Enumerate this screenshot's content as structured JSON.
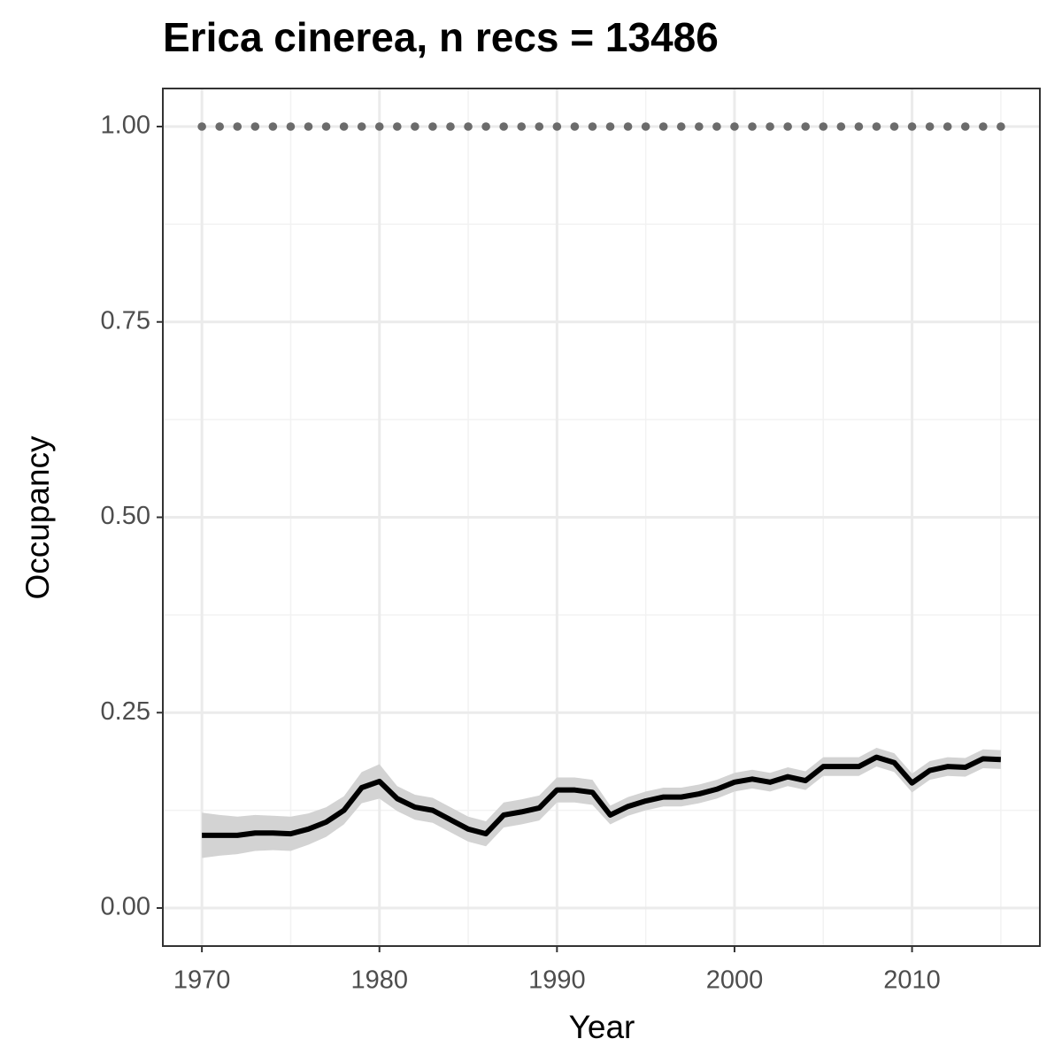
{
  "chart_data": {
    "type": "line",
    "title": "Erica cinerea, n recs = 13486",
    "xlabel": "Year",
    "ylabel": "Occupancy",
    "x": [
      1970,
      1971,
      1972,
      1973,
      1974,
      1975,
      1976,
      1977,
      1978,
      1979,
      1980,
      1981,
      1982,
      1983,
      1984,
      1985,
      1986,
      1987,
      1988,
      1989,
      1990,
      1991,
      1992,
      1993,
      1994,
      1995,
      1996,
      1997,
      1998,
      1999,
      2000,
      2001,
      2002,
      2003,
      2004,
      2005,
      2006,
      2007,
      2008,
      2009,
      2010,
      2011,
      2012,
      2013,
      2014,
      2015
    ],
    "series": [
      {
        "color": "#000000",
        "band_color": "#d3d3d3",
        "values": [
          0.093,
          0.093,
          0.093,
          0.096,
          0.096,
          0.095,
          0.101,
          0.11,
          0.125,
          0.154,
          0.162,
          0.14,
          0.129,
          0.125,
          0.113,
          0.101,
          0.095,
          0.119,
          0.123,
          0.128,
          0.151,
          0.151,
          0.148,
          0.119,
          0.13,
          0.137,
          0.142,
          0.142,
          0.146,
          0.152,
          0.161,
          0.165,
          0.161,
          0.168,
          0.163,
          0.181,
          0.181,
          0.181,
          0.193,
          0.186,
          0.16,
          0.176,
          0.181,
          0.18,
          0.191,
          0.19
        ],
        "lower": [
          0.064,
          0.067,
          0.069,
          0.073,
          0.074,
          0.073,
          0.081,
          0.091,
          0.107,
          0.134,
          0.14,
          0.124,
          0.113,
          0.109,
          0.097,
          0.085,
          0.079,
          0.103,
          0.107,
          0.112,
          0.135,
          0.135,
          0.132,
          0.107,
          0.118,
          0.125,
          0.13,
          0.13,
          0.134,
          0.14,
          0.149,
          0.153,
          0.149,
          0.156,
          0.151,
          0.169,
          0.169,
          0.169,
          0.181,
          0.174,
          0.148,
          0.164,
          0.169,
          0.168,
          0.179,
          0.178
        ],
        "upper": [
          0.122,
          0.119,
          0.117,
          0.119,
          0.118,
          0.117,
          0.121,
          0.129,
          0.143,
          0.174,
          0.184,
          0.156,
          0.145,
          0.141,
          0.129,
          0.117,
          0.111,
          0.135,
          0.139,
          0.144,
          0.167,
          0.167,
          0.164,
          0.131,
          0.142,
          0.149,
          0.154,
          0.154,
          0.158,
          0.164,
          0.173,
          0.177,
          0.173,
          0.18,
          0.175,
          0.193,
          0.193,
          0.193,
          0.205,
          0.198,
          0.172,
          0.188,
          0.193,
          0.192,
          0.203,
          0.202
        ]
      },
      {
        "color": "#6b6b6b",
        "linestyle": "dotted",
        "values": [
          1,
          1,
          1,
          1,
          1,
          1,
          1,
          1,
          1,
          1,
          1,
          1,
          1,
          1,
          1,
          1,
          1,
          1,
          1,
          1,
          1,
          1,
          1,
          1,
          1,
          1,
          1,
          1,
          1,
          1,
          1,
          1,
          1,
          1,
          1,
          1,
          1,
          1,
          1,
          1,
          1,
          1,
          1,
          1,
          1,
          1
        ]
      }
    ],
    "xlim": [
      1967.8,
      2017.2
    ],
    "ylim": [
      -0.0487,
      1.0487
    ],
    "xticks": [
      1970,
      1980,
      1990,
      2000,
      2010
    ],
    "yticks": [
      {
        "value": 0,
        "label": "0.00"
      },
      {
        "value": 0.25,
        "label": "0.25"
      },
      {
        "value": 0.5,
        "label": "0.50"
      },
      {
        "value": 0.75,
        "label": "0.75"
      },
      {
        "value": 1,
        "label": "1.00"
      }
    ],
    "xminor": [
      1975,
      1985,
      1995,
      2005,
      2015
    ],
    "yminor": [
      0.125,
      0.375,
      0.625,
      0.875
    ],
    "grid": true
  }
}
